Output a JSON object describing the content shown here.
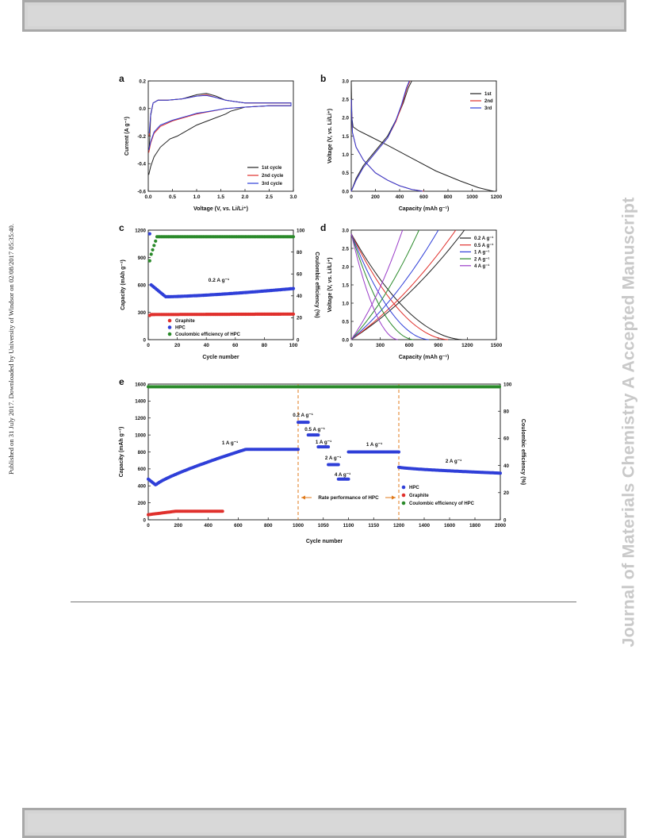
{
  "watermark": "Journal of Materials Chemistry A Accepted Manuscript",
  "published_note": "Published on 31 July 2017. Downloaded by University of Windsor on 02/08/2017 05:35:40.",
  "colors": {
    "black": "#222222",
    "red": "#e0302c",
    "blue": "#2f3fd8",
    "green": "#2a8a2a",
    "orange": "#e07a1a",
    "magenta": "#9a3cc8"
  },
  "chart_data": [
    {
      "panel": "a",
      "type": "line",
      "xlabel": "Voltage (V, vs. Li/Li⁺)",
      "ylabel": "Current (A g⁻¹)",
      "xlim": [
        0,
        3.0
      ],
      "ylim": [
        -0.6,
        0.2
      ],
      "xticks": [
        "0.0",
        "0.5",
        "1.0",
        "1.5",
        "2.0",
        "2.5",
        "3.0"
      ],
      "yticks": [
        "-0.6",
        "-0.4",
        "-0.2",
        "0.0",
        "0.2"
      ],
      "legend_position": "bottom-right",
      "series": [
        {
          "name": "1st cycle",
          "color": "black",
          "x": [
            0.01,
            0.05,
            0.12,
            0.25,
            0.45,
            0.6,
            0.8,
            1.0,
            1.3,
            1.6,
            1.7,
            2.0,
            2.5,
            2.95,
            2.95,
            2.5,
            2.0,
            1.6,
            1.4,
            1.2,
            1.0,
            0.7,
            0.4,
            0.2,
            0.1,
            0.05,
            0.02
          ],
          "y": [
            -0.48,
            -0.42,
            -0.35,
            -0.28,
            -0.22,
            -0.2,
            -0.16,
            -0.12,
            -0.08,
            -0.04,
            -0.02,
            0.01,
            0.02,
            0.02,
            0.04,
            0.04,
            0.04,
            0.06,
            0.09,
            0.11,
            0.1,
            0.07,
            0.06,
            0.06,
            0.04,
            -0.05,
            -0.3
          ]
        },
        {
          "name": "2nd cycle",
          "color": "red",
          "x": [
            0.01,
            0.05,
            0.12,
            0.25,
            0.5,
            0.8,
            1.0,
            1.3,
            1.6,
            2.0,
            2.5,
            2.95,
            2.95,
            2.5,
            2.0,
            1.6,
            1.4,
            1.2,
            1.0,
            0.7,
            0.4,
            0.2,
            0.1,
            0.05,
            0.02
          ],
          "y": [
            -0.32,
            -0.25,
            -0.18,
            -0.13,
            -0.09,
            -0.06,
            -0.04,
            -0.02,
            0.0,
            0.01,
            0.02,
            0.02,
            0.04,
            0.04,
            0.04,
            0.06,
            0.08,
            0.1,
            0.09,
            0.07,
            0.06,
            0.06,
            0.04,
            -0.04,
            -0.2
          ]
        },
        {
          "name": "3rd cycle",
          "color": "blue",
          "x": [
            0.01,
            0.05,
            0.12,
            0.25,
            0.5,
            0.8,
            1.0,
            1.3,
            1.6,
            2.0,
            2.5,
            2.95,
            2.95,
            2.5,
            2.0,
            1.6,
            1.4,
            1.2,
            1.0,
            0.7,
            0.4,
            0.2,
            0.1,
            0.05,
            0.02
          ],
          "y": [
            -0.3,
            -0.24,
            -0.17,
            -0.12,
            -0.085,
            -0.055,
            -0.035,
            -0.018,
            0.0,
            0.01,
            0.02,
            0.02,
            0.04,
            0.04,
            0.04,
            0.06,
            0.08,
            0.095,
            0.09,
            0.07,
            0.06,
            0.06,
            0.04,
            -0.04,
            -0.18
          ]
        }
      ]
    },
    {
      "panel": "b",
      "type": "line",
      "xlabel": "Capacity (mAh g⁻¹)",
      "ylabel": "Voltage (V, vs. Li/Li⁺)",
      "xlim": [
        0,
        1200
      ],
      "ylim": [
        0,
        3.0
      ],
      "xticks": [
        "0",
        "200",
        "400",
        "600",
        "800",
        "1000",
        "1200"
      ],
      "yticks": [
        "0.0",
        "0.5",
        "1.0",
        "1.5",
        "2.0",
        "2.5",
        "3.0"
      ],
      "legend_position": "top-right",
      "series": [
        {
          "name": "1st",
          "color": "black",
          "x": [
            0,
            5,
            15,
            60,
            150,
            300,
            500,
            700,
            900,
            1050,
            1150,
            1180
          ],
          "y": [
            3.0,
            2.0,
            1.75,
            1.65,
            1.5,
            1.25,
            0.9,
            0.55,
            0.28,
            0.1,
            0.02,
            0.0
          ],
          "x2": [
            0,
            40,
            100,
            200,
            300,
            380,
            430,
            470,
            500
          ],
          "y2": [
            0.0,
            0.35,
            0.7,
            1.1,
            1.5,
            2.0,
            2.4,
            2.8,
            3.0
          ]
        },
        {
          "name": "2nd",
          "color": "red",
          "x": [
            0,
            10,
            40,
            100,
            200,
            300,
            400,
            500,
            600
          ],
          "y": [
            2.5,
            1.6,
            1.2,
            0.85,
            0.5,
            0.3,
            0.15,
            0.05,
            0.0
          ],
          "x2": [
            0,
            40,
            100,
            200,
            300,
            370,
            420,
            460,
            485
          ],
          "y2": [
            0.0,
            0.3,
            0.65,
            1.05,
            1.45,
            1.9,
            2.35,
            2.8,
            3.0
          ]
        },
        {
          "name": "3rd",
          "color": "blue",
          "x": [
            0,
            10,
            40,
            100,
            200,
            300,
            400,
            500,
            590
          ],
          "y": [
            2.5,
            1.6,
            1.2,
            0.85,
            0.5,
            0.3,
            0.15,
            0.05,
            0.0
          ],
          "x2": [
            0,
            40,
            100,
            200,
            300,
            365,
            415,
            455,
            480
          ],
          "y2": [
            0.0,
            0.3,
            0.65,
            1.05,
            1.45,
            1.9,
            2.35,
            2.8,
            3.0
          ]
        }
      ]
    },
    {
      "panel": "c",
      "type": "scatter",
      "xlabel": "Cycle number",
      "ylabel": "Capacity (mAh g⁻¹)",
      "y2label": "Coulombic efficiency (%)",
      "xlim": [
        0,
        100
      ],
      "ylim": [
        0,
        1200
      ],
      "y2lim": [
        0,
        100
      ],
      "xticks": [
        "0",
        "20",
        "40",
        "60",
        "80",
        "100"
      ],
      "yticks": [
        "0",
        "300",
        "600",
        "900",
        "1200"
      ],
      "y2ticks": [
        "0",
        "20",
        "40",
        "60",
        "80",
        "100"
      ],
      "annotation": "0.2 A g⁻¹",
      "legend_position": "bottom-left",
      "series": [
        {
          "name": "Graphite",
          "color": "red",
          "start": 265,
          "plateau": 275,
          "end": 280
        },
        {
          "name": "HPC",
          "color": "blue",
          "first": 1160,
          "second": 600,
          "min": 470,
          "end": 560
        },
        {
          "name": "Coulombic efficiency of HPC",
          "color": "green",
          "first": 72,
          "second": 78,
          "plateau": 94
        }
      ]
    },
    {
      "panel": "d",
      "type": "line",
      "xlabel": "Capacity (mAh g⁻¹)",
      "ylabel": "Voltage (V, vs. Li/Li⁺)",
      "xlim": [
        0,
        1500
      ],
      "ylim": [
        0,
        3.0
      ],
      "xticks": [
        "0",
        "300",
        "600",
        "900",
        "1200",
        "1500"
      ],
      "yticks": [
        "0.0",
        "0.5",
        "1.0",
        "1.5",
        "2.0",
        "2.5",
        "3.0"
      ],
      "legend_position": "top-right",
      "series": [
        {
          "name": "0.2 A g⁻¹",
          "color": "black",
          "dis": 1150,
          "chg": 1170
        },
        {
          "name": "0.5 A g⁻¹",
          "color": "red",
          "dis": 1000,
          "chg": 1080
        },
        {
          "name": "1 A g⁻¹",
          "color": "blue",
          "dis": 800,
          "chg": 900
        },
        {
          "name": "2 A g⁻¹",
          "color": "green",
          "dis": 640,
          "chg": 700
        },
        {
          "name": "4 A g⁻¹",
          "color": "magenta",
          "dis": 480,
          "chg": 530
        }
      ]
    },
    {
      "panel": "e",
      "type": "scatter",
      "xlabel": "Cycle number",
      "ylabel": "Capacity (mAh g⁻¹)",
      "y2label": "Coulombic efficiency (%)",
      "ylim": [
        0,
        1600
      ],
      "y2lim": [
        0,
        100
      ],
      "xticks_left": [
        "0",
        "200",
        "400",
        "600",
        "800",
        "1000"
      ],
      "xticks_mid": [
        "1050",
        "1100",
        "1150",
        "1200"
      ],
      "xticks_right": [
        "1400",
        "1600",
        "1800",
        "2000"
      ],
      "yticks": [
        "0",
        "200",
        "400",
        "600",
        "800",
        "1000",
        "1200",
        "1400",
        "1600"
      ],
      "y2ticks": [
        "0",
        "20",
        "40",
        "60",
        "80",
        "100"
      ],
      "annotations": [
        "1 A g⁻¹",
        "0.2 A g⁻¹",
        "0.5 A g⁻¹",
        "1 A g⁻¹",
        "2 A g⁻¹",
        "4 A g⁻¹",
        "1 A g⁻¹",
        "2 A g⁻¹",
        "Rate performance of HPC"
      ],
      "legend_position": "bottom-right",
      "series": [
        {
          "name": "HPC",
          "color": "blue"
        },
        {
          "name": "Graphite",
          "color": "red"
        },
        {
          "name": "Coulombic efficiency of HPC",
          "color": "green"
        }
      ],
      "hpc_segments": [
        {
          "rate": "1 A g⁻¹",
          "from": 0,
          "to": 1000,
          "start": 480,
          "min": 410,
          "end": 830
        },
        {
          "rate": "0.2 A g⁻¹",
          "from": 1000,
          "to": 1020,
          "value": 1150
        },
        {
          "rate": "0.5 A g⁻¹",
          "from": 1020,
          "to": 1040,
          "value": 1000
        },
        {
          "rate": "1 A g⁻¹",
          "from": 1040,
          "to": 1060,
          "value": 860
        },
        {
          "rate": "2 A g⁻¹",
          "from": 1060,
          "to": 1080,
          "value": 650
        },
        {
          "rate": "4 A g⁻¹",
          "from": 1080,
          "to": 1100,
          "value": 480
        },
        {
          "rate": "1 A g⁻¹",
          "from": 1100,
          "to": 1200,
          "value": 800
        },
        {
          "rate": "2 A g⁻¹",
          "from": 1200,
          "to": 2000,
          "start": 620,
          "end": 550
        }
      ],
      "graphite": {
        "from": 0,
        "to": 500,
        "start": 60,
        "plateau": 100
      },
      "ce_plateau": 98
    }
  ]
}
